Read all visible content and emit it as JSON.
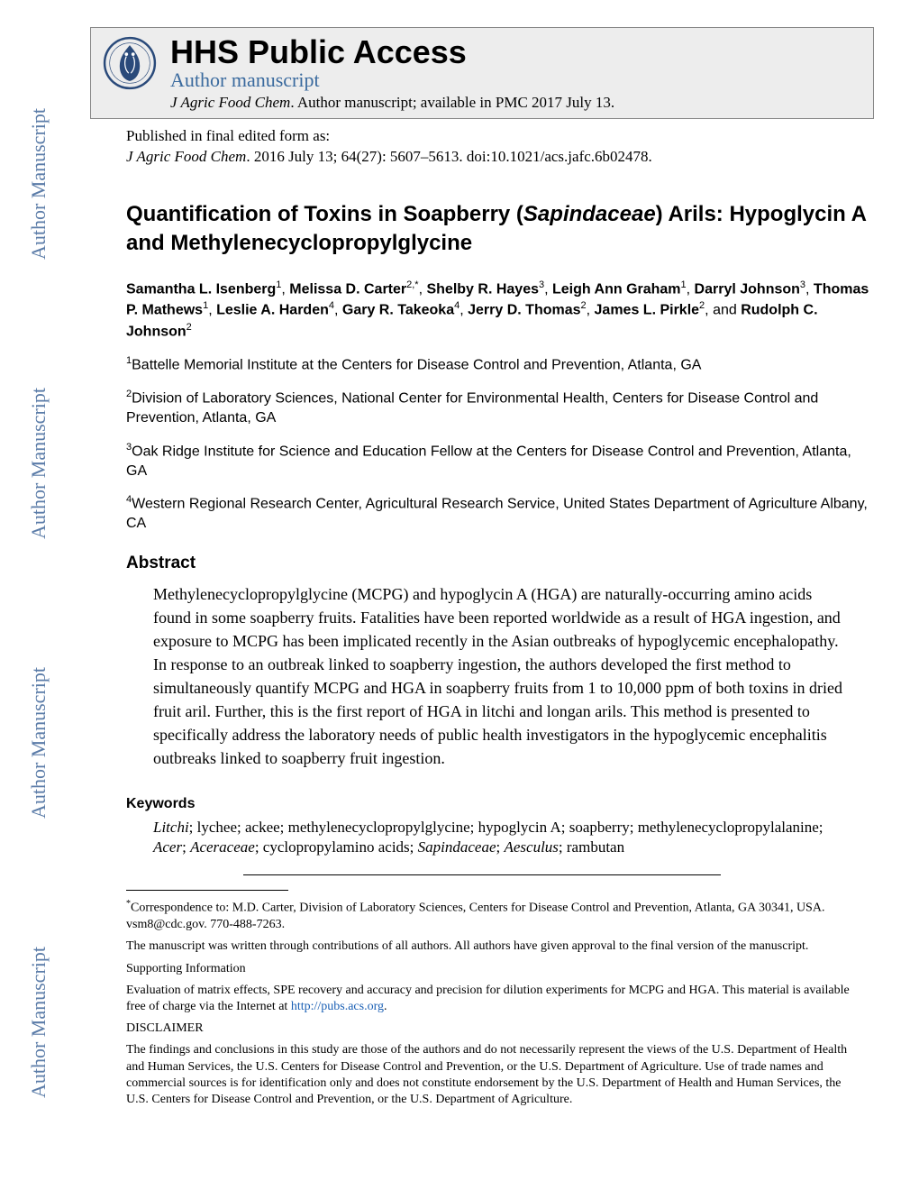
{
  "watermark": "Author Manuscript",
  "header": {
    "hhs": "HHS Public Access",
    "author_ms": "Author manuscript",
    "journal_ital": "J Agric Food Chem",
    "journal_rest": ". Author manuscript; available in PMC 2017 July 13."
  },
  "published": {
    "line1": "Published in final edited form as:",
    "journal_ital": "J Agric Food Chem",
    "cite_rest": ". 2016 July 13; 64(27): 5607–5613. doi:10.1021/acs.jafc.6b02478."
  },
  "title": {
    "pre": "Quantification of Toxins in Soapberry (",
    "ital": "Sapindaceae",
    "post": ") Arils: Hypoglycin A and Methylenecyclopropylglycine"
  },
  "authors_html": "<b>Samantha L. Isenberg</b><sup>1</sup>, <b>Melissa D. Carter</b><sup>2,*</sup>, <b>Shelby R. Hayes</b><sup>3</sup>, <b>Leigh Ann Graham</b><sup>1</sup>, <b>Darryl Johnson</b><sup>3</sup>, <b>Thomas P. Mathews</b><sup>1</sup>, <b>Leslie A. Harden</b><sup>4</sup>, <b>Gary R. Takeoka</b><sup>4</sup>, <b>Jerry D. Thomas</b><sup>2</sup>, <b>James L. Pirkle</b><sup>2</sup>, and <b>Rudolph C. Johnson</b><sup>2</sup>",
  "affils": [
    "<sup>1</sup>Battelle Memorial Institute at the Centers for Disease Control and Prevention, Atlanta, GA",
    "<sup>2</sup>Division of Laboratory Sciences, National Center for Environmental Health, Centers for Disease Control and Prevention, Atlanta, GA",
    "<sup>3</sup>Oak Ridge Institute for Science and Education Fellow at the Centers for Disease Control and Prevention, Atlanta, GA",
    "<sup>4</sup>Western Regional Research Center, Agricultural Research Service, United States Department of Agriculture Albany, CA"
  ],
  "abstract_h": "Abstract",
  "abstract_body": "Methylenecyclopropylglycine (MCPG) and hypoglycin A (HGA) are naturally-occurring amino acids found in some soapberry fruits. Fatalities have been reported worldwide as a result of HGA ingestion, and exposure to MCPG has been implicated recently in the Asian outbreaks of hypoglycemic encephalopathy. In response to an outbreak linked to soapberry ingestion, the authors developed the first method to simultaneously quantify MCPG and HGA in soapberry fruits from 1 to 10,000 ppm of both toxins in dried fruit aril. Further, this is the first report of HGA in litchi and longan arils. This method is presented to specifically address the laboratory needs of public health investigators in the hypoglycemic encephalitis outbreaks linked to soapberry fruit ingestion.",
  "keywords_h": "Keywords",
  "keywords_html": "<span class=\"ital\">Litchi</span>; lychee; ackee; methylenecyclopropylglycine; hypoglycin A; soapberry; methylenecyclopropylalanine; <span class=\"ital\">Acer</span>; <span class=\"ital\">Aceraceae</span>; cyclopropylamino acids; <span class=\"ital\">Sapindaceae</span>; <span class=\"ital\">Aesculus</span>; rambutan",
  "footnotes": {
    "corr": "<sup>*</sup>Correspondence to: M.D. Carter, Division of Laboratory Sciences, Centers for Disease Control and Prevention, Atlanta, GA 30341, USA. vsm8@cdc.gov. 770-488-7263.",
    "authors": "The manuscript was written through contributions of all authors. All authors have given approval to the final version of the manuscript.",
    "si_h": "Supporting Information",
    "si_body": "Evaluation of matrix effects, SPE recovery and accuracy and precision for dilution experiments for MCPG and HGA. This material is available free of charge via the Internet at ",
    "si_link": "http://pubs.acs.org",
    "disc_h": "DISCLAIMER",
    "disc_body": "The findings and conclusions in this study are those of the authors and do not necessarily represent the views of the U.S. Department of Health and Human Services, the U.S. Centers for Disease Control and Prevention, or the U.S. Department of Agriculture. Use of trade names and commercial sources is for identification only and does not constitute endorsement by the U.S. Department of Health and Human Services, the U.S. Centers for Disease Control and Prevention, or the U.S. Department of Agriculture."
  },
  "colors": {
    "watermark": "#5b7ca8",
    "header_bg": "#ededed",
    "link": "#1a5fb4",
    "author_ms": "#3a6a9e"
  }
}
